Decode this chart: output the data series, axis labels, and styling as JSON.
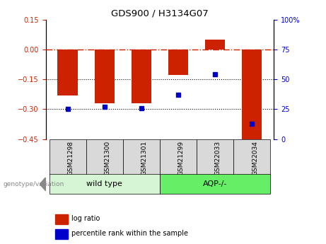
{
  "title": "GDS900 / H3134G07",
  "categories": [
    "GSM21298",
    "GSM21300",
    "GSM21301",
    "GSM21299",
    "GSM22033",
    "GSM22034"
  ],
  "log_ratios": [
    -0.23,
    -0.27,
    -0.27,
    -0.13,
    0.05,
    -0.45
  ],
  "percentile_ranks": [
    25,
    27,
    26,
    37,
    54,
    13
  ],
  "ylim_left": [
    -0.45,
    0.15
  ],
  "ylim_right": [
    0,
    100
  ],
  "yticks_left": [
    0.15,
    0,
    -0.15,
    -0.3,
    -0.45
  ],
  "yticks_right": [
    100,
    75,
    50,
    25,
    0
  ],
  "ytick_labels_right": [
    "100%",
    "75",
    "50",
    "25",
    "0"
  ],
  "bar_color": "#cc2200",
  "dot_color": "#0000cc",
  "hline_color": "#cc2200",
  "dotted_line_color": "#000000",
  "group1_label": "wild type",
  "group2_label": "AQP-/-",
  "group1_color": "#d5f5d5",
  "group2_color": "#66ee66",
  "legend_log_ratio": "log ratio",
  "legend_percentile": "percentile rank within the sample",
  "genotype_label": "genotype/variation",
  "bar_width": 0.55
}
